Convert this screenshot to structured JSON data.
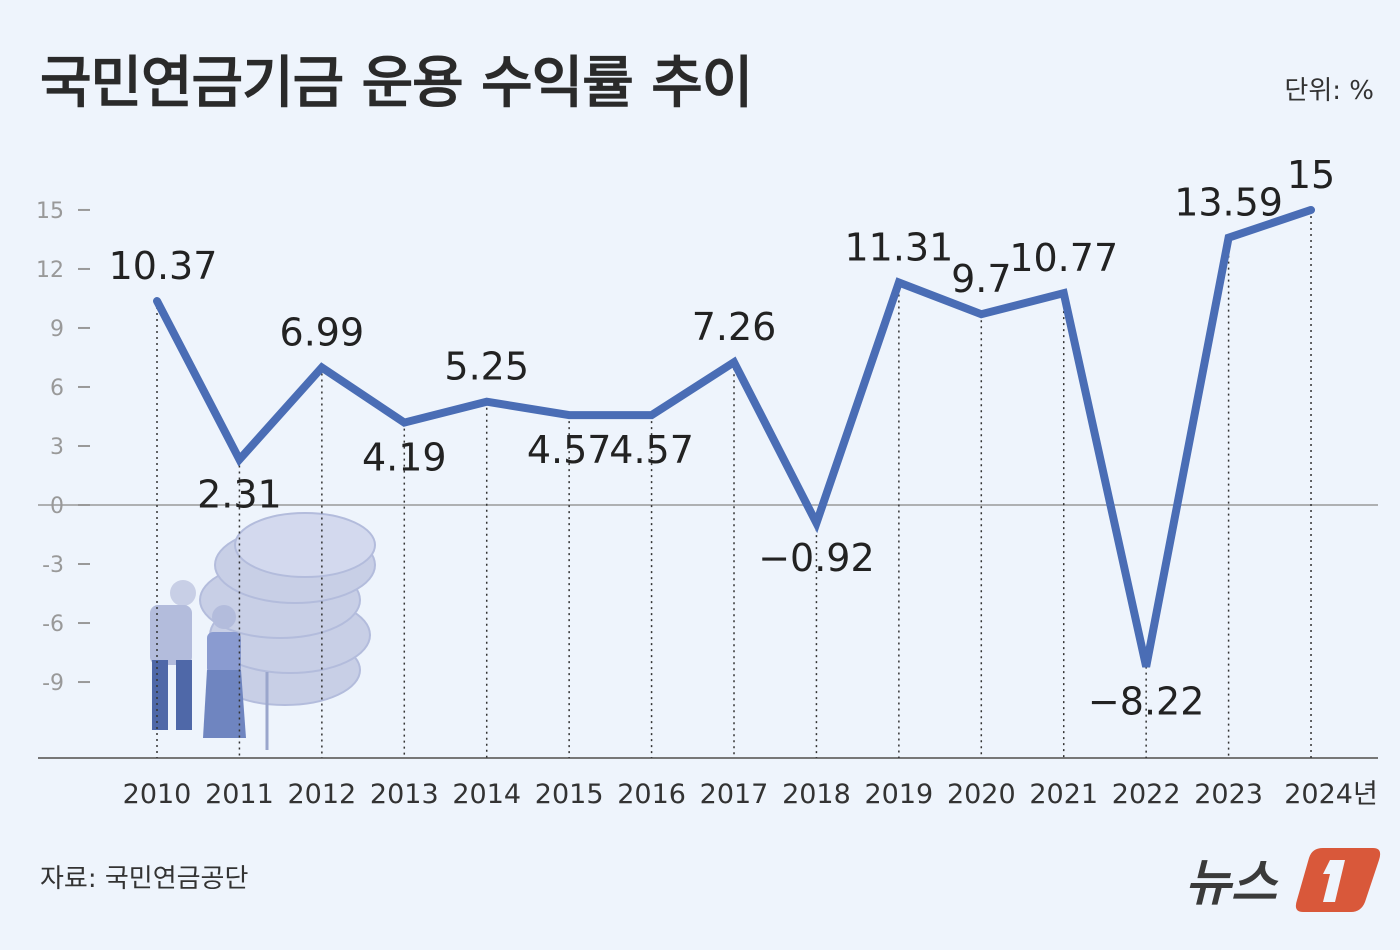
{
  "title": "국민연금기금 운용 수익률 추이",
  "unit": "단위: %",
  "source": "자료: 국민연금공단",
  "logo_text": "뉴스1",
  "colors": {
    "line": "#4a6db5",
    "background": "#eef4fc",
    "logo_accent": "#d9583a"
  },
  "chart_data": {
    "type": "line",
    "categories": [
      "2010",
      "2011",
      "2012",
      "2013",
      "2014",
      "2015",
      "2016",
      "2017",
      "2018",
      "2019",
      "2020",
      "2021",
      "2022",
      "2023",
      "2024년"
    ],
    "values": [
      10.37,
      2.31,
      6.99,
      4.19,
      5.25,
      4.57,
      4.57,
      7.26,
      -0.92,
      11.31,
      9.7,
      10.77,
      -8.22,
      13.59,
      15
    ],
    "data_labels": [
      "10.37",
      "2.31",
      "6.99",
      "4.19",
      "5.25",
      "4.57",
      "4.57",
      "7.26",
      "−0.92",
      "11.31",
      "9.7",
      "10.77",
      "−8.22",
      "13.59",
      "15"
    ],
    "label_position": [
      "above",
      "below",
      "above",
      "below",
      "above",
      "below",
      "below",
      "above",
      "below",
      "above",
      "above",
      "above",
      "below",
      "above",
      "above"
    ],
    "yticks": [
      15,
      12,
      9,
      6,
      3,
      0,
      -3,
      -6,
      -9
    ],
    "ytick_labels": [
      "15",
      "12",
      "9",
      "6",
      "3",
      "0",
      "-3",
      "-6",
      "-9"
    ],
    "ylim": [
      -13,
      17
    ],
    "grid": false,
    "xlabel": "",
    "ylabel": ""
  }
}
